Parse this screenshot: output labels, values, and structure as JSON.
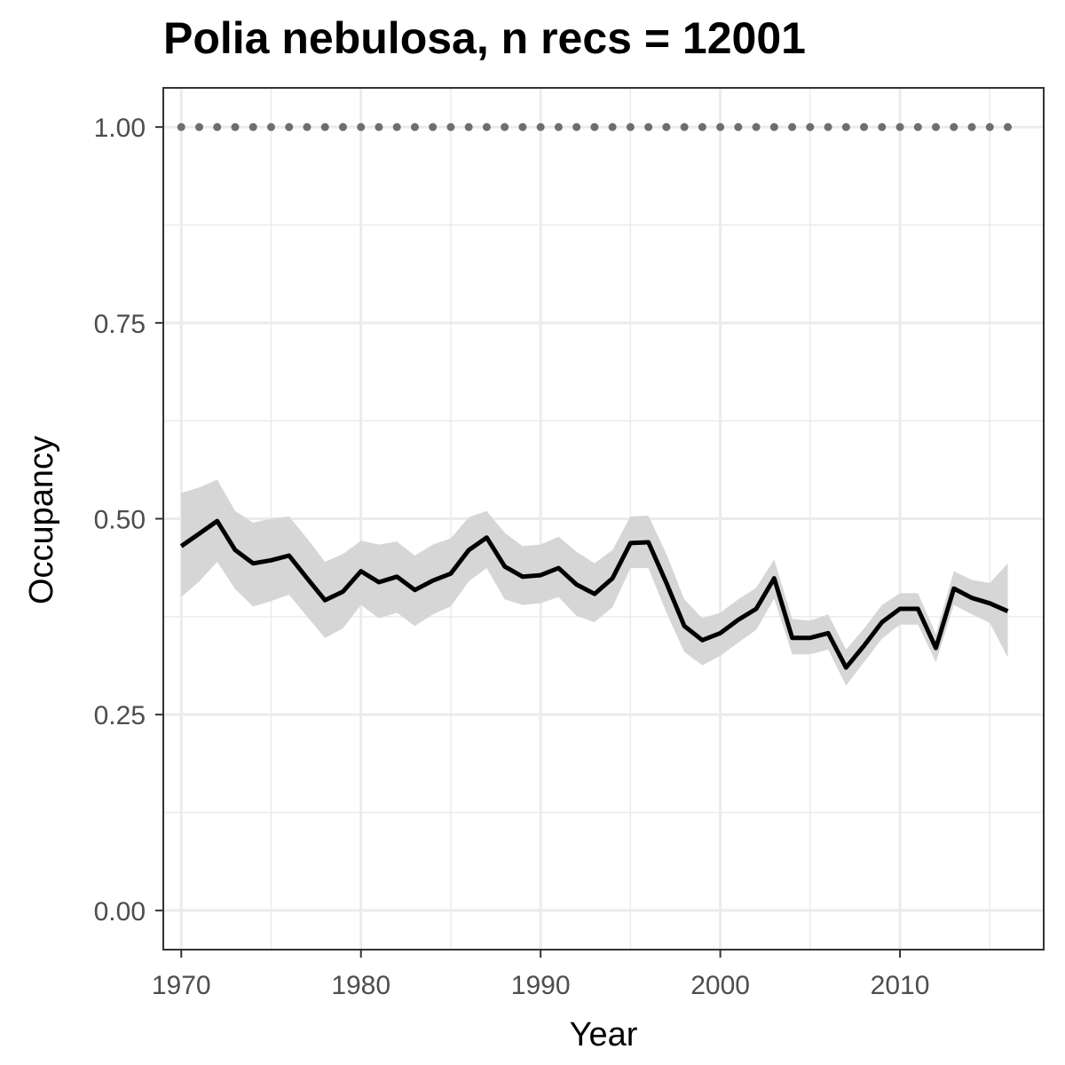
{
  "chart_data": {
    "type": "line",
    "title": "Polia nebulosa, n recs = 12001",
    "xlabel": "Year",
    "ylabel": "Occupancy",
    "xlim": [
      1969,
      2018
    ],
    "ylim": [
      -0.05,
      1.05
    ],
    "x_ticks": [
      1970,
      1980,
      1990,
      2000,
      2010
    ],
    "x_tick_labels": [
      "1970",
      "1980",
      "1990",
      "2000",
      "2010"
    ],
    "y_ticks": [
      0,
      0.25,
      0.5,
      0.75,
      1.0
    ],
    "y_tick_labels": [
      "0.00",
      "0.25",
      "0.50",
      "0.75",
      "1.00"
    ],
    "grid": true,
    "colors": {
      "line": "#000000",
      "band": "#d6d6d6",
      "dotted": "#6e6e6e",
      "grid": "#ebebeb",
      "panel_border": "#333333"
    },
    "series": [
      {
        "x": [
          1970,
          1971,
          1972,
          1973,
          1974,
          1975,
          1976,
          1977,
          1978,
          1979,
          1980,
          1981,
          1982,
          1983,
          1984,
          1985,
          1986,
          1987,
          1988,
          1989,
          1990,
          1991,
          1992,
          1993,
          1994,
          1995,
          1996,
          1997,
          1998,
          1999,
          2000,
          2001,
          2002,
          2003,
          2004,
          2005,
          2006,
          2007,
          2008,
          2009,
          2010,
          2011,
          2012,
          2013,
          2014,
          2015,
          2016
        ],
        "y": [
          0.465,
          0.481,
          0.497,
          0.46,
          0.443,
          0.447,
          0.453,
          0.424,
          0.396,
          0.407,
          0.433,
          0.419,
          0.426,
          0.409,
          0.421,
          0.43,
          0.46,
          0.476,
          0.439,
          0.426,
          0.428,
          0.437,
          0.416,
          0.404,
          0.424,
          0.469,
          0.47,
          0.418,
          0.363,
          0.345,
          0.354,
          0.371,
          0.385,
          0.424,
          0.348,
          0.348,
          0.354,
          0.31,
          0.338,
          0.368,
          0.385,
          0.385,
          0.335,
          0.411,
          0.399,
          0.392,
          0.382
        ],
        "lower": [
          0.4,
          0.42,
          0.445,
          0.41,
          0.388,
          0.395,
          0.403,
          0.375,
          0.348,
          0.36,
          0.39,
          0.373,
          0.38,
          0.363,
          0.378,
          0.388,
          0.42,
          0.437,
          0.397,
          0.39,
          0.392,
          0.4,
          0.376,
          0.368,
          0.387,
          0.437,
          0.437,
          0.38,
          0.33,
          0.313,
          0.325,
          0.342,
          0.358,
          0.398,
          0.327,
          0.327,
          0.333,
          0.287,
          0.317,
          0.347,
          0.365,
          0.365,
          0.317,
          0.39,
          0.378,
          0.367,
          0.323
        ],
        "upper": [
          0.533,
          0.54,
          0.55,
          0.51,
          0.495,
          0.5,
          0.503,
          0.475,
          0.445,
          0.455,
          0.472,
          0.467,
          0.471,
          0.453,
          0.467,
          0.475,
          0.502,
          0.51,
          0.482,
          0.465,
          0.467,
          0.477,
          0.458,
          0.443,
          0.46,
          0.503,
          0.504,
          0.455,
          0.397,
          0.373,
          0.38,
          0.397,
          0.412,
          0.448,
          0.372,
          0.37,
          0.378,
          0.333,
          0.36,
          0.39,
          0.405,
          0.405,
          0.353,
          0.433,
          0.422,
          0.418,
          0.443
        ]
      },
      {
        "x": [
          1970,
          1971,
          1972,
          1973,
          1974,
          1975,
          1976,
          1977,
          1978,
          1979,
          1980,
          1981,
          1982,
          1983,
          1984,
          1985,
          1986,
          1987,
          1988,
          1989,
          1990,
          1991,
          1992,
          1993,
          1994,
          1995,
          1996,
          1997,
          1998,
          1999,
          2000,
          2001,
          2002,
          2003,
          2004,
          2005,
          2006,
          2007,
          2008,
          2009,
          2010,
          2011,
          2012,
          2013,
          2014,
          2015,
          2016
        ],
        "y": [
          1,
          1,
          1,
          1,
          1,
          1,
          1,
          1,
          1,
          1,
          1,
          1,
          1,
          1,
          1,
          1,
          1,
          1,
          1,
          1,
          1,
          1,
          1,
          1,
          1,
          1,
          1,
          1,
          1,
          1,
          1,
          1,
          1,
          1,
          1,
          1,
          1,
          1,
          1,
          1,
          1,
          1,
          1,
          1,
          1,
          1,
          1
        ],
        "style": "dotted"
      }
    ]
  }
}
